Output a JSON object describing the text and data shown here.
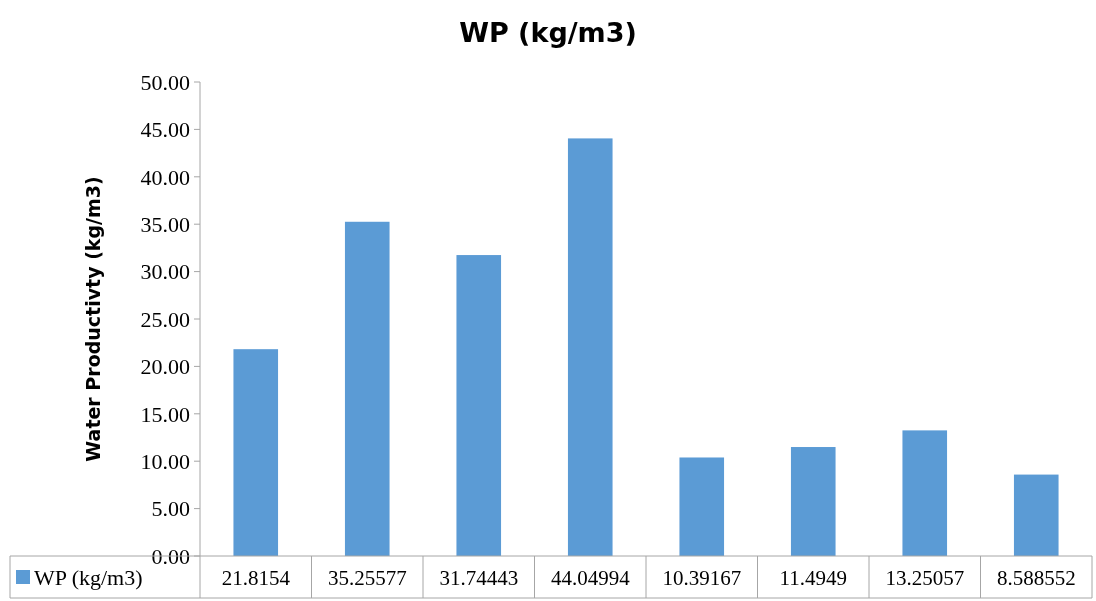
{
  "chart_data": {
    "type": "bar",
    "title": "WP (kg/m3)",
    "ylabel": "Water Productivty (kg/m3)",
    "categories": [
      null,
      null,
      null,
      null,
      null,
      null,
      null,
      null
    ],
    "series": [
      {
        "name": "WP (kg/m3)",
        "color": "#5b9bd5",
        "values": [
          21.8154,
          35.25577,
          31.74443,
          44.04994,
          10.39167,
          11.4949,
          13.25057,
          8.588552
        ]
      }
    ],
    "ylim": [
      0,
      50
    ],
    "yticks": [
      {
        "value": 0,
        "label": "0.00"
      },
      {
        "value": 5,
        "label": "5.00"
      },
      {
        "value": 10,
        "label": "10.00"
      },
      {
        "value": 15,
        "label": "15.00"
      },
      {
        "value": 20,
        "label": "20.00"
      },
      {
        "value": 25,
        "label": "25.00"
      },
      {
        "value": 30,
        "label": "30.00"
      },
      {
        "value": 35,
        "label": "35.00"
      },
      {
        "value": 40,
        "label": "40.00"
      },
      {
        "value": 45,
        "label": "45.00"
      },
      {
        "value": 50,
        "label": "50.00"
      }
    ],
    "data_labels": true,
    "legend": "bottom",
    "grid": false
  }
}
